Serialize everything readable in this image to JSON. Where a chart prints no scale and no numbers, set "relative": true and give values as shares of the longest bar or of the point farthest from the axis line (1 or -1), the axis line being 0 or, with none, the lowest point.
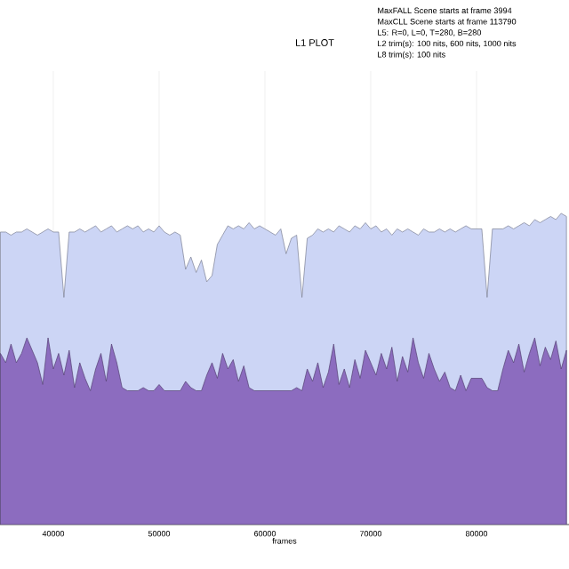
{
  "chart_data": {
    "type": "area",
    "title": "L1 PLOT",
    "xlabel": "frames",
    "annotations": [
      "MaxFALL Scene starts at frame 3994",
      "MaxCLL Scene starts at frame 113790",
      "L5: R=0, L=0, T=280, B=280",
      "L2 trim(s): 100 nits, 600 nits, 1000 nits",
      "L8 trim(s): 100 nits"
    ],
    "relative": true,
    "grid": true,
    "xlim": [
      34960,
      88740
    ],
    "xticks": [
      40000,
      50000,
      60000,
      70000,
      80000
    ],
    "x": [
      35000,
      35500,
      36000,
      36500,
      37000,
      37500,
      38000,
      38500,
      39000,
      39500,
      40000,
      40500,
      41000,
      41500,
      42000,
      42500,
      43000,
      43500,
      44000,
      44500,
      45000,
      45500,
      46000,
      46500,
      47000,
      47500,
      48000,
      48500,
      49000,
      49500,
      50000,
      50500,
      51000,
      51500,
      52000,
      52500,
      53000,
      53500,
      54000,
      54500,
      55000,
      55500,
      56000,
      56500,
      57000,
      57500,
      58000,
      58500,
      59000,
      59500,
      60000,
      60500,
      61000,
      61500,
      62000,
      62500,
      63000,
      63500,
      64000,
      64500,
      65000,
      65500,
      66000,
      66500,
      67000,
      67500,
      68000,
      68500,
      69000,
      69500,
      70000,
      70500,
      71000,
      71500,
      72000,
      72500,
      73000,
      73500,
      74000,
      74500,
      75000,
      75500,
      76000,
      76500,
      77000,
      77500,
      78000,
      78500,
      79000,
      79500,
      80000,
      80500,
      81000,
      81500,
      82000,
      82500,
      83000,
      83500,
      84000,
      84500,
      85000,
      85500,
      86000,
      86500,
      87000,
      87500,
      88000,
      88500
    ],
    "series": [
      {
        "color": "#ccd5f5",
        "values": [
          0.94,
          0.94,
          0.93,
          0.94,
          0.94,
          0.95,
          0.94,
          0.93,
          0.94,
          0.95,
          0.94,
          0.94,
          0.73,
          0.94,
          0.94,
          0.95,
          0.94,
          0.95,
          0.96,
          0.94,
          0.95,
          0.96,
          0.94,
          0.95,
          0.96,
          0.95,
          0.96,
          0.94,
          0.95,
          0.94,
          0.96,
          0.94,
          0.93,
          0.94,
          0.93,
          0.82,
          0.86,
          0.81,
          0.85,
          0.78,
          0.8,
          0.9,
          0.93,
          0.96,
          0.95,
          0.96,
          0.95,
          0.97,
          0.95,
          0.96,
          0.95,
          0.94,
          0.93,
          0.95,
          0.87,
          0.92,
          0.93,
          0.73,
          0.92,
          0.93,
          0.95,
          0.94,
          0.95,
          0.94,
          0.96,
          0.95,
          0.94,
          0.96,
          0.95,
          0.97,
          0.95,
          0.96,
          0.94,
          0.95,
          0.93,
          0.95,
          0.94,
          0.95,
          0.94,
          0.93,
          0.95,
          0.94,
          0.94,
          0.95,
          0.94,
          0.95,
          0.94,
          0.95,
          0.96,
          0.95,
          0.95,
          0.95,
          0.73,
          0.95,
          0.95,
          0.95,
          0.96,
          0.95,
          0.96,
          0.97,
          0.96,
          0.98,
          0.97,
          0.98,
          0.99,
          0.98,
          1,
          0.99
        ]
      },
      {
        "color": "#8c6cbf",
        "values": [
          0.55,
          0.52,
          0.58,
          0.52,
          0.55,
          0.6,
          0.56,
          0.52,
          0.45,
          0.6,
          0.5,
          0.55,
          0.48,
          0.56,
          0.44,
          0.52,
          0.47,
          0.43,
          0.5,
          0.55,
          0.46,
          0.58,
          0.52,
          0.44,
          0.43,
          0.43,
          0.43,
          0.44,
          0.43,
          0.43,
          0.45,
          0.43,
          0.43,
          0.43,
          0.43,
          0.46,
          0.44,
          0.43,
          0.43,
          0.48,
          0.52,
          0.47,
          0.55,
          0.5,
          0.53,
          0.46,
          0.51,
          0.44,
          0.43,
          0.43,
          0.43,
          0.43,
          0.43,
          0.43,
          0.43,
          0.43,
          0.44,
          0.43,
          0.5,
          0.46,
          0.52,
          0.44,
          0.49,
          0.58,
          0.45,
          0.5,
          0.44,
          0.53,
          0.47,
          0.56,
          0.52,
          0.48,
          0.55,
          0.5,
          0.57,
          0.46,
          0.54,
          0.49,
          0.6,
          0.52,
          0.47,
          0.55,
          0.5,
          0.46,
          0.49,
          0.44,
          0.43,
          0.48,
          0.43,
          0.47,
          0.47,
          0.47,
          0.44,
          0.43,
          0.43,
          0.5,
          0.56,
          0.52,
          0.58,
          0.49,
          0.55,
          0.6,
          0.51,
          0.57,
          0.53,
          0.59,
          0.5,
          0.56
        ]
      }
    ]
  }
}
